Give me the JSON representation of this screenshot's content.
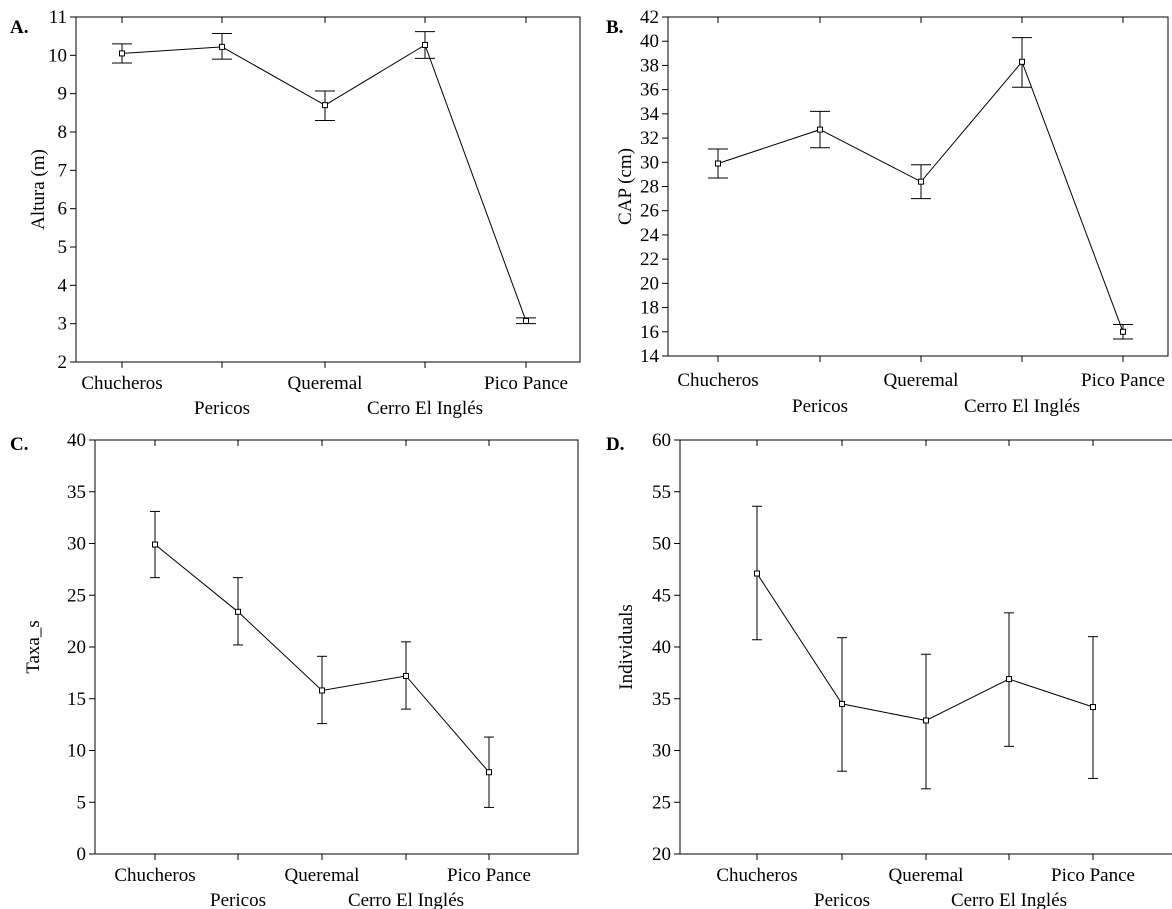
{
  "chart_data": [
    {
      "panel": "A.",
      "type": "line",
      "ylabel": "Altura (m)",
      "ylim": [
        2,
        11
      ],
      "yticks": [
        2,
        3,
        4,
        5,
        6,
        7,
        8,
        9,
        10,
        11
      ],
      "categories": [
        "Chucheros",
        "Pericos",
        "Queremal",
        "Cerro El Inglés",
        "Pico Pance"
      ],
      "values": [
        10.05,
        10.22,
        8.7,
        10.27,
        3.07
      ],
      "error_low": [
        9.8,
        9.9,
        8.3,
        9.92,
        3.0
      ],
      "error_high": [
        10.3,
        10.57,
        9.07,
        10.62,
        3.15
      ],
      "grid": false
    },
    {
      "panel": "B.",
      "type": "line",
      "ylabel": "CAP (cm)",
      "ylim": [
        14,
        42
      ],
      "yticks": [
        14,
        16,
        18,
        20,
        22,
        24,
        26,
        28,
        30,
        32,
        34,
        36,
        38,
        40,
        42
      ],
      "categories": [
        "Chucheros",
        "Pericos",
        "Queremal",
        "Cerro El Inglés",
        "Pico Pance"
      ],
      "values": [
        29.9,
        32.7,
        28.4,
        38.3,
        16.0
      ],
      "error_low": [
        28.7,
        31.2,
        27.0,
        36.2,
        15.4
      ],
      "error_high": [
        31.1,
        34.2,
        29.8,
        40.3,
        16.6
      ],
      "grid": false
    },
    {
      "panel": "C.",
      "type": "line",
      "ylabel": "Taxa_s",
      "ylim": [
        0,
        40
      ],
      "yticks": [
        0,
        5,
        10,
        15,
        20,
        25,
        30,
        35,
        40
      ],
      "categories": [
        "Chucheros",
        "Pericos",
        "Queremal",
        "Cerro El Inglés",
        "Pico Pance"
      ],
      "values": [
        29.9,
        23.4,
        15.8,
        17.2,
        7.9
      ],
      "error_low": [
        26.7,
        20.2,
        12.6,
        14.0,
        4.5
      ],
      "error_high": [
        33.1,
        26.7,
        19.1,
        20.5,
        11.3
      ],
      "grid": false
    },
    {
      "panel": "D.",
      "type": "line",
      "ylabel": "Individuals",
      "ylim": [
        20,
        60
      ],
      "yticks": [
        20,
        25,
        30,
        35,
        40,
        45,
        50,
        55,
        60
      ],
      "categories": [
        "Chucheros",
        "Pericos",
        "Queremal",
        "Cerro El Inglés",
        "Pico Pance"
      ],
      "values": [
        47.1,
        34.5,
        32.9,
        36.9,
        34.2
      ],
      "error_low": [
        40.7,
        28.0,
        26.3,
        30.4,
        27.3
      ],
      "error_high": [
        53.6,
        40.9,
        39.3,
        43.3,
        41.0
      ],
      "grid": false
    }
  ]
}
